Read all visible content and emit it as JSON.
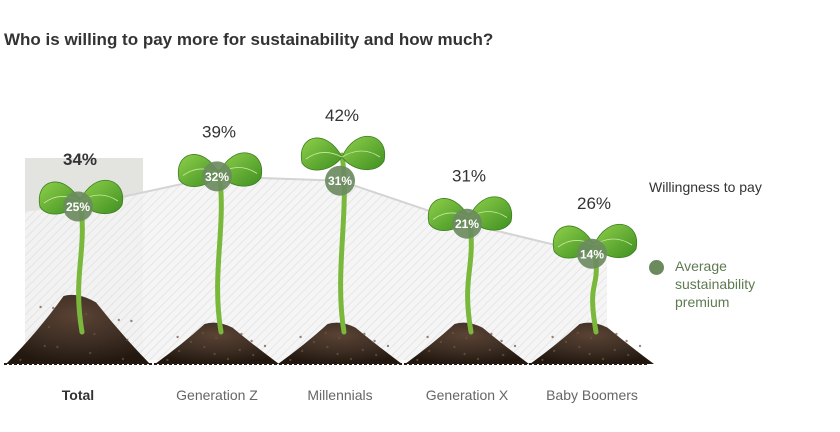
{
  "title": "Who is willing to pay more for sustainability and how much?",
  "legend": {
    "willingness": "Willingness to pay",
    "premium": "Average sustainability premium"
  },
  "colors": {
    "premium_dot": "#6b8b5f",
    "leaf": "#5aa832",
    "stem": "#7ab83c",
    "soil": "#3a2a1e",
    "highlight_box": "#e3e3e0",
    "line": "#d4d4d4"
  },
  "chart_data": {
    "type": "line",
    "categories": [
      "Total",
      "Generation Z",
      "Millennials",
      "Generation X",
      "Baby Boomers"
    ],
    "series": [
      {
        "name": "Willingness to pay",
        "values": [
          34,
          39,
          42,
          31,
          26
        ]
      },
      {
        "name": "Average sustainability premium",
        "values": [
          25,
          32,
          31,
          21,
          14
        ]
      }
    ],
    "highlight_category": "Total",
    "legend_position": "right"
  }
}
